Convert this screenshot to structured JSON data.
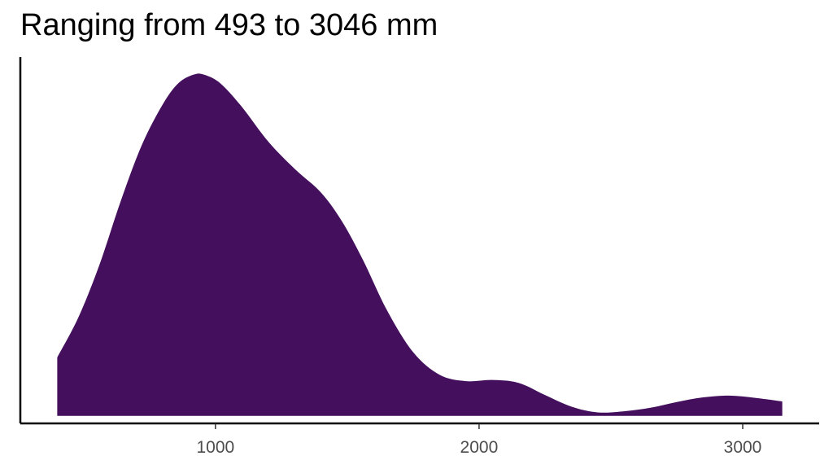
{
  "chart_data": {
    "type": "area",
    "title": "Ranging from 493 to 3046 mm",
    "xlabel": "",
    "ylabel": "",
    "xlim": [
      260,
      3290
    ],
    "ylim": [
      -1.3e-05,
      0.00062
    ],
    "x_ticks": [
      1000,
      2000,
      3000
    ],
    "x_tick_labels": [
      "1000",
      "2000",
      "3000"
    ],
    "y_axis_ticks_shown": false,
    "grid": false,
    "fill_color": "#440f5d",
    "x": [
      400,
      480,
      560,
      640,
      720,
      800,
      860,
      920,
      960,
      1020,
      1100,
      1200,
      1300,
      1400,
      1480,
      1560,
      1650,
      1750,
      1850,
      1950,
      2050,
      2150,
      2250,
      2350,
      2450,
      2550,
      2650,
      2750,
      2850,
      2950,
      3050,
      3150
    ],
    "y": [
      0.000101,
      0.00017,
      0.000261,
      0.00037,
      0.000467,
      0.000538,
      0.000575,
      0.00059,
      0.000589,
      0.000574,
      0.000534,
      0.000474,
      0.000427,
      0.000386,
      0.000336,
      0.000269,
      0.000183,
      0.00011,
      7.1e-05,
      6e-05,
      6.2e-05,
      5.7e-05,
      3.6e-05,
      1.6e-05,
      6e-06,
      8e-06,
      1.4e-05,
      2.4e-05,
      3.2e-05,
      3.5e-05,
      3.1e-05,
      2.5e-05
    ]
  }
}
